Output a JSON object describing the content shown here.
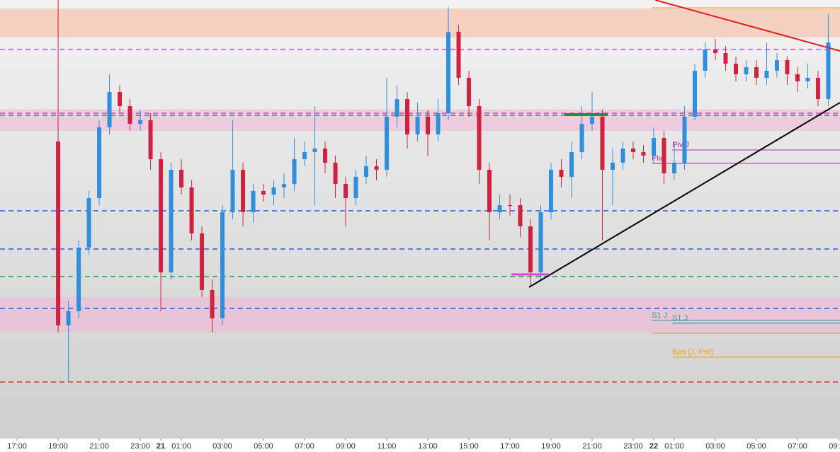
{
  "chart_data": {
    "type": "candlestick",
    "up_color": "#2f8fdc",
    "down_color": "#d0223f",
    "xlim": [
      -0.83,
      40.07
    ],
    "ylim": [
      0,
      620
    ],
    "xticks": [
      {
        "value": 0,
        "label": "17:00"
      },
      {
        "value": 2,
        "label": "19:00"
      },
      {
        "value": 4,
        "label": "21:00"
      },
      {
        "value": 6,
        "label": "23:00"
      },
      {
        "value": 7,
        "label": "21"
      },
      {
        "value": 8,
        "label": "01:00"
      },
      {
        "value": 10,
        "label": "03:00"
      },
      {
        "value": 12,
        "label": "05:00"
      },
      {
        "value": 14,
        "label": "07:00"
      },
      {
        "value": 16,
        "label": "09:00"
      },
      {
        "value": 18,
        "label": "11:00"
      },
      {
        "value": 20,
        "label": "13:00"
      },
      {
        "value": 22,
        "label": "15:00"
      },
      {
        "value": 24,
        "label": "17:00"
      },
      {
        "value": 26,
        "label": "19:00"
      },
      {
        "value": 28,
        "label": "21:00"
      },
      {
        "value": 30,
        "label": "23:00"
      },
      {
        "value": 31,
        "label": "22"
      },
      {
        "value": 32,
        "label": "01:00"
      },
      {
        "value": 34,
        "label": "03:00"
      },
      {
        "value": 36,
        "label": "05:00"
      },
      {
        "value": 38,
        "label": "07:00"
      },
      {
        "value": 40,
        "label": "09:00"
      }
    ],
    "x": [
      2.0,
      2.5,
      3.0,
      3.5,
      4.0,
      4.5,
      5.0,
      5.5,
      6.0,
      6.5,
      7.0,
      7.5,
      8.0,
      8.5,
      9.0,
      9.5,
      10.0,
      10.5,
      11.0,
      11.5,
      12.0,
      12.5,
      13.0,
      13.5,
      14.0,
      14.5,
      15.0,
      15.5,
      16.0,
      16.5,
      17.0,
      17.5,
      18.0,
      18.5,
      19.0,
      19.5,
      20.0,
      20.5,
      21.0,
      21.5,
      22.0,
      22.5,
      23.0,
      23.5,
      24.0,
      24.5,
      25.0,
      25.5,
      26.0,
      26.5,
      27.0,
      27.5,
      28.0,
      28.5,
      29.0,
      29.5,
      30.0,
      30.5,
      31.0,
      31.5,
      32.0,
      32.5,
      33.0,
      33.5,
      34.0,
      34.5,
      35.0,
      35.5,
      36.0,
      36.5,
      37.0,
      37.5,
      38.0,
      38.5,
      39.0,
      39.5
    ],
    "open": [
      420,
      160,
      180,
      270,
      340,
      440,
      490,
      470,
      445,
      450,
      395,
      235,
      380,
      355,
      290,
      210,
      170,
      320,
      380,
      320,
      350,
      345,
      355,
      360,
      395,
      405,
      410,
      390,
      360,
      340,
      370,
      385,
      380,
      455,
      480,
      430,
      455,
      430,
      460,
      575,
      510,
      470,
      380,
      320,
      330,
      330,
      300,
      235,
      320,
      380,
      370,
      405,
      445,
      455,
      380,
      390,
      410,
      405,
      400,
      425,
      375,
      390,
      455,
      520,
      550,
      545,
      530,
      515,
      525,
      510,
      520,
      535,
      515,
      505,
      510,
      480
    ],
    "high": [
      620,
      195,
      280,
      350,
      450,
      515,
      500,
      480,
      465,
      460,
      405,
      390,
      395,
      365,
      300,
      225,
      330,
      450,
      390,
      360,
      360,
      365,
      375,
      425,
      420,
      470,
      420,
      400,
      370,
      380,
      400,
      395,
      510,
      500,
      490,
      475,
      465,
      480,
      610,
      585,
      520,
      480,
      390,
      345,
      345,
      340,
      310,
      330,
      390,
      395,
      420,
      470,
      490,
      465,
      410,
      420,
      420,
      415,
      440,
      435,
      420,
      470,
      530,
      560,
      565,
      555,
      540,
      535,
      535,
      560,
      545,
      540,
      525,
      530,
      520,
      600
    ],
    "low": [
      150,
      80,
      170,
      260,
      330,
      430,
      460,
      435,
      435,
      380,
      180,
      225,
      345,
      280,
      200,
      150,
      160,
      310,
      300,
      305,
      335,
      330,
      340,
      350,
      385,
      330,
      375,
      340,
      300,
      330,
      360,
      365,
      370,
      440,
      410,
      420,
      400,
      420,
      450,
      500,
      455,
      360,
      280,
      310,
      315,
      285,
      215,
      225,
      310,
      355,
      340,
      395,
      435,
      280,
      330,
      380,
      395,
      390,
      390,
      360,
      365,
      380,
      450,
      510,
      535,
      520,
      505,
      505,
      500,
      500,
      510,
      500,
      490,
      495,
      470,
      470
    ],
    "close": [
      160,
      180,
      270,
      340,
      440,
      490,
      470,
      445,
      450,
      395,
      235,
      380,
      355,
      290,
      210,
      170,
      320,
      380,
      320,
      350,
      345,
      355,
      360,
      395,
      405,
      410,
      390,
      360,
      340,
      370,
      385,
      380,
      455,
      480,
      430,
      455,
      430,
      460,
      575,
      510,
      470,
      380,
      320,
      330,
      330,
      300,
      235,
      320,
      380,
      370,
      405,
      445,
      455,
      380,
      390,
      410,
      405,
      400,
      425,
      375,
      390,
      455,
      520,
      550,
      545,
      530,
      515,
      525,
      510,
      520,
      535,
      515,
      505,
      510,
      480,
      560
    ],
    "zones": [
      {
        "from": 567,
        "to": 608,
        "color": "#f5cbb8"
      },
      {
        "from": 435,
        "to": 465,
        "color": "#efc5dc"
      },
      {
        "from": 150,
        "to": 200,
        "color": "#e8c2d6"
      }
    ],
    "levels": [
      {
        "value": 550,
        "color": "#e040e0"
      },
      {
        "value": 460,
        "color": "#e040e0"
      },
      {
        "value": 457,
        "color": "#20a040"
      },
      {
        "value": 322,
        "color": "#2060e0"
      },
      {
        "value": 268,
        "color": "#2060e0"
      },
      {
        "value": 229,
        "color": "#20a040"
      },
      {
        "value": 184,
        "color": "#2060e0"
      },
      {
        "value": 80,
        "color": "#e03030"
      }
    ],
    "pivots": [
      {
        "value": 609,
        "x": 30.9,
        "color": "#f39c12"
      },
      {
        "label": "Piv J",
        "value": 408,
        "x": 31.9,
        "color": "#c020c0"
      },
      {
        "label": "Piv",
        "value": 389,
        "x": 30.9,
        "color": "#c020c0"
      },
      {
        "label": "S1 J",
        "value": 167,
        "x": 30.9,
        "color": "#2a9d9d"
      },
      {
        "label": "S1 J",
        "value": 163,
        "x": 31.9,
        "color": "#2a9d9d"
      },
      {
        "value": 149,
        "x": 30.9,
        "color": "#f39c12"
      },
      {
        "label": "Bas (J, Pré)",
        "value": 115,
        "x": 31.9,
        "color": "#f39c12"
      }
    ],
    "trendlines": [
      {
        "x": [
          24.93,
          40.07
        ],
        "y": [
          214,
          475
        ],
        "color": "#000000",
        "width": 2
      },
      {
        "x": [
          31.07,
          40.07
        ],
        "y": [
          620,
          548
        ],
        "color": "#e02020",
        "width": 2
      },
      {
        "x": [
          24.07,
          25.9
        ],
        "y": [
          232,
          232
        ],
        "color": "#e040e0",
        "width": 3
      },
      {
        "x": [
          26.66,
          28.76
        ],
        "y": [
          458,
          458
        ],
        "color": "#20903a",
        "width": 4
      }
    ]
  }
}
